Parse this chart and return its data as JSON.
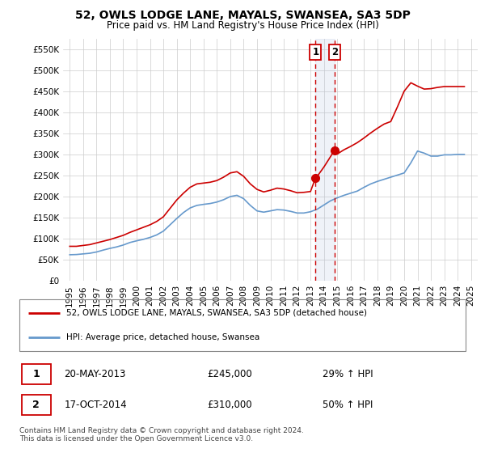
{
  "title": "52, OWLS LODGE LANE, MAYALS, SWANSEA, SA3 5DP",
  "subtitle": "Price paid vs. HM Land Registry's House Price Index (HPI)",
  "ylim": [
    0,
    575000
  ],
  "yticks": [
    0,
    50000,
    100000,
    150000,
    200000,
    250000,
    300000,
    350000,
    400000,
    450000,
    500000,
    550000
  ],
  "ytick_labels": [
    "£0",
    "£50K",
    "£100K",
    "£150K",
    "£200K",
    "£250K",
    "£300K",
    "£350K",
    "£400K",
    "£450K",
    "£500K",
    "£550K"
  ],
  "xlim_start": 1994.5,
  "xlim_end": 2025.5,
  "xtick_years": [
    1995,
    1996,
    1997,
    1998,
    1999,
    2000,
    2001,
    2002,
    2003,
    2004,
    2005,
    2006,
    2007,
    2008,
    2009,
    2010,
    2011,
    2012,
    2013,
    2014,
    2015,
    2016,
    2017,
    2018,
    2019,
    2020,
    2021,
    2022,
    2023,
    2024,
    2025
  ],
  "line1_color": "#cc0000",
  "line2_color": "#6699cc",
  "sale1_date_x": 2013.38,
  "sale1_price": 245000,
  "sale1_label": "20-MAY-2013",
  "sale1_amount": "£245,000",
  "sale1_hpi": "29% ↑ HPI",
  "sale2_date_x": 2014.79,
  "sale2_price": 310000,
  "sale2_label": "17-OCT-2014",
  "sale2_amount": "£310,000",
  "sale2_hpi": "50% ↑ HPI",
  "legend1": "52, OWLS LODGE LANE, MAYALS, SWANSEA, SA3 5DP (detached house)",
  "legend2": "HPI: Average price, detached house, Swansea",
  "footnote": "Contains HM Land Registry data © Crown copyright and database right 2024.\nThis data is licensed under the Open Government Licence v3.0.",
  "background_color": "#ffffff",
  "grid_color": "#cccccc",
  "hpi_line_data_x": [
    1995.0,
    1995.5,
    1996.0,
    1996.5,
    1997.0,
    1997.5,
    1998.0,
    1998.5,
    1999.0,
    1999.5,
    2000.0,
    2000.5,
    2001.0,
    2001.5,
    2002.0,
    2002.5,
    2003.0,
    2003.5,
    2004.0,
    2004.5,
    2005.0,
    2005.5,
    2006.0,
    2006.5,
    2007.0,
    2007.5,
    2008.0,
    2008.5,
    2009.0,
    2009.5,
    2010.0,
    2010.5,
    2011.0,
    2011.5,
    2012.0,
    2012.5,
    2013.0,
    2013.5,
    2014.0,
    2014.5,
    2015.0,
    2015.5,
    2016.0,
    2016.5,
    2017.0,
    2017.5,
    2018.0,
    2018.5,
    2019.0,
    2019.5,
    2020.0,
    2020.5,
    2021.0,
    2021.5,
    2022.0,
    2022.5,
    2023.0,
    2023.5,
    2024.0,
    2024.5
  ],
  "hpi_line_data_y": [
    62000,
    62500,
    64000,
    65500,
    68500,
    73000,
    77000,
    80500,
    85000,
    91000,
    95000,
    98500,
    103000,
    109000,
    118000,
    133000,
    148000,
    162000,
    173000,
    179000,
    181500,
    183500,
    187000,
    192500,
    200000,
    203000,
    195000,
    179000,
    166000,
    163000,
    166000,
    169000,
    168000,
    165000,
    161000,
    161000,
    164000,
    170000,
    180000,
    190000,
    197000,
    203000,
    208000,
    213000,
    222000,
    230000,
    236000,
    241000,
    246000,
    251000,
    256000,
    280000,
    308000,
    303000,
    296000,
    296000,
    299000,
    299000,
    300000,
    300000
  ],
  "price_line_data_x": [
    1995.0,
    1995.5,
    1996.0,
    1996.5,
    1997.0,
    1997.5,
    1998.0,
    1998.5,
    1999.0,
    1999.5,
    2000.0,
    2000.5,
    2001.0,
    2001.5,
    2002.0,
    2002.5,
    2003.0,
    2003.5,
    2004.0,
    2004.5,
    2005.0,
    2005.5,
    2006.0,
    2006.5,
    2007.0,
    2007.5,
    2008.0,
    2008.5,
    2009.0,
    2009.5,
    2010.0,
    2010.5,
    2011.0,
    2011.5,
    2012.0,
    2012.5,
    2013.0,
    2013.38,
    2013.5,
    2014.0,
    2014.5,
    2014.79,
    2015.0,
    2015.5,
    2016.0,
    2016.5,
    2017.0,
    2017.5,
    2018.0,
    2018.5,
    2019.0,
    2019.5,
    2020.0,
    2020.5,
    2021.0,
    2021.5,
    2022.0,
    2022.5,
    2023.0,
    2023.5,
    2024.0,
    2024.5
  ],
  "price_line_data_y": [
    82000,
    82000,
    84000,
    86000,
    90000,
    94000,
    98000,
    103000,
    108000,
    115000,
    121000,
    127000,
    133000,
    141000,
    152000,
    172000,
    192000,
    208000,
    222000,
    230000,
    232000,
    234000,
    238000,
    246000,
    256000,
    259000,
    248000,
    230000,
    217000,
    211000,
    215000,
    220000,
    218000,
    214000,
    209000,
    210000,
    212000,
    245000,
    248000,
    270000,
    295000,
    310000,
    301000,
    311000,
    319000,
    328000,
    339000,
    351000,
    362000,
    372000,
    378000,
    413000,
    450000,
    470000,
    462000,
    455000,
    456000,
    459000,
    461000,
    461000,
    461000,
    461000
  ]
}
